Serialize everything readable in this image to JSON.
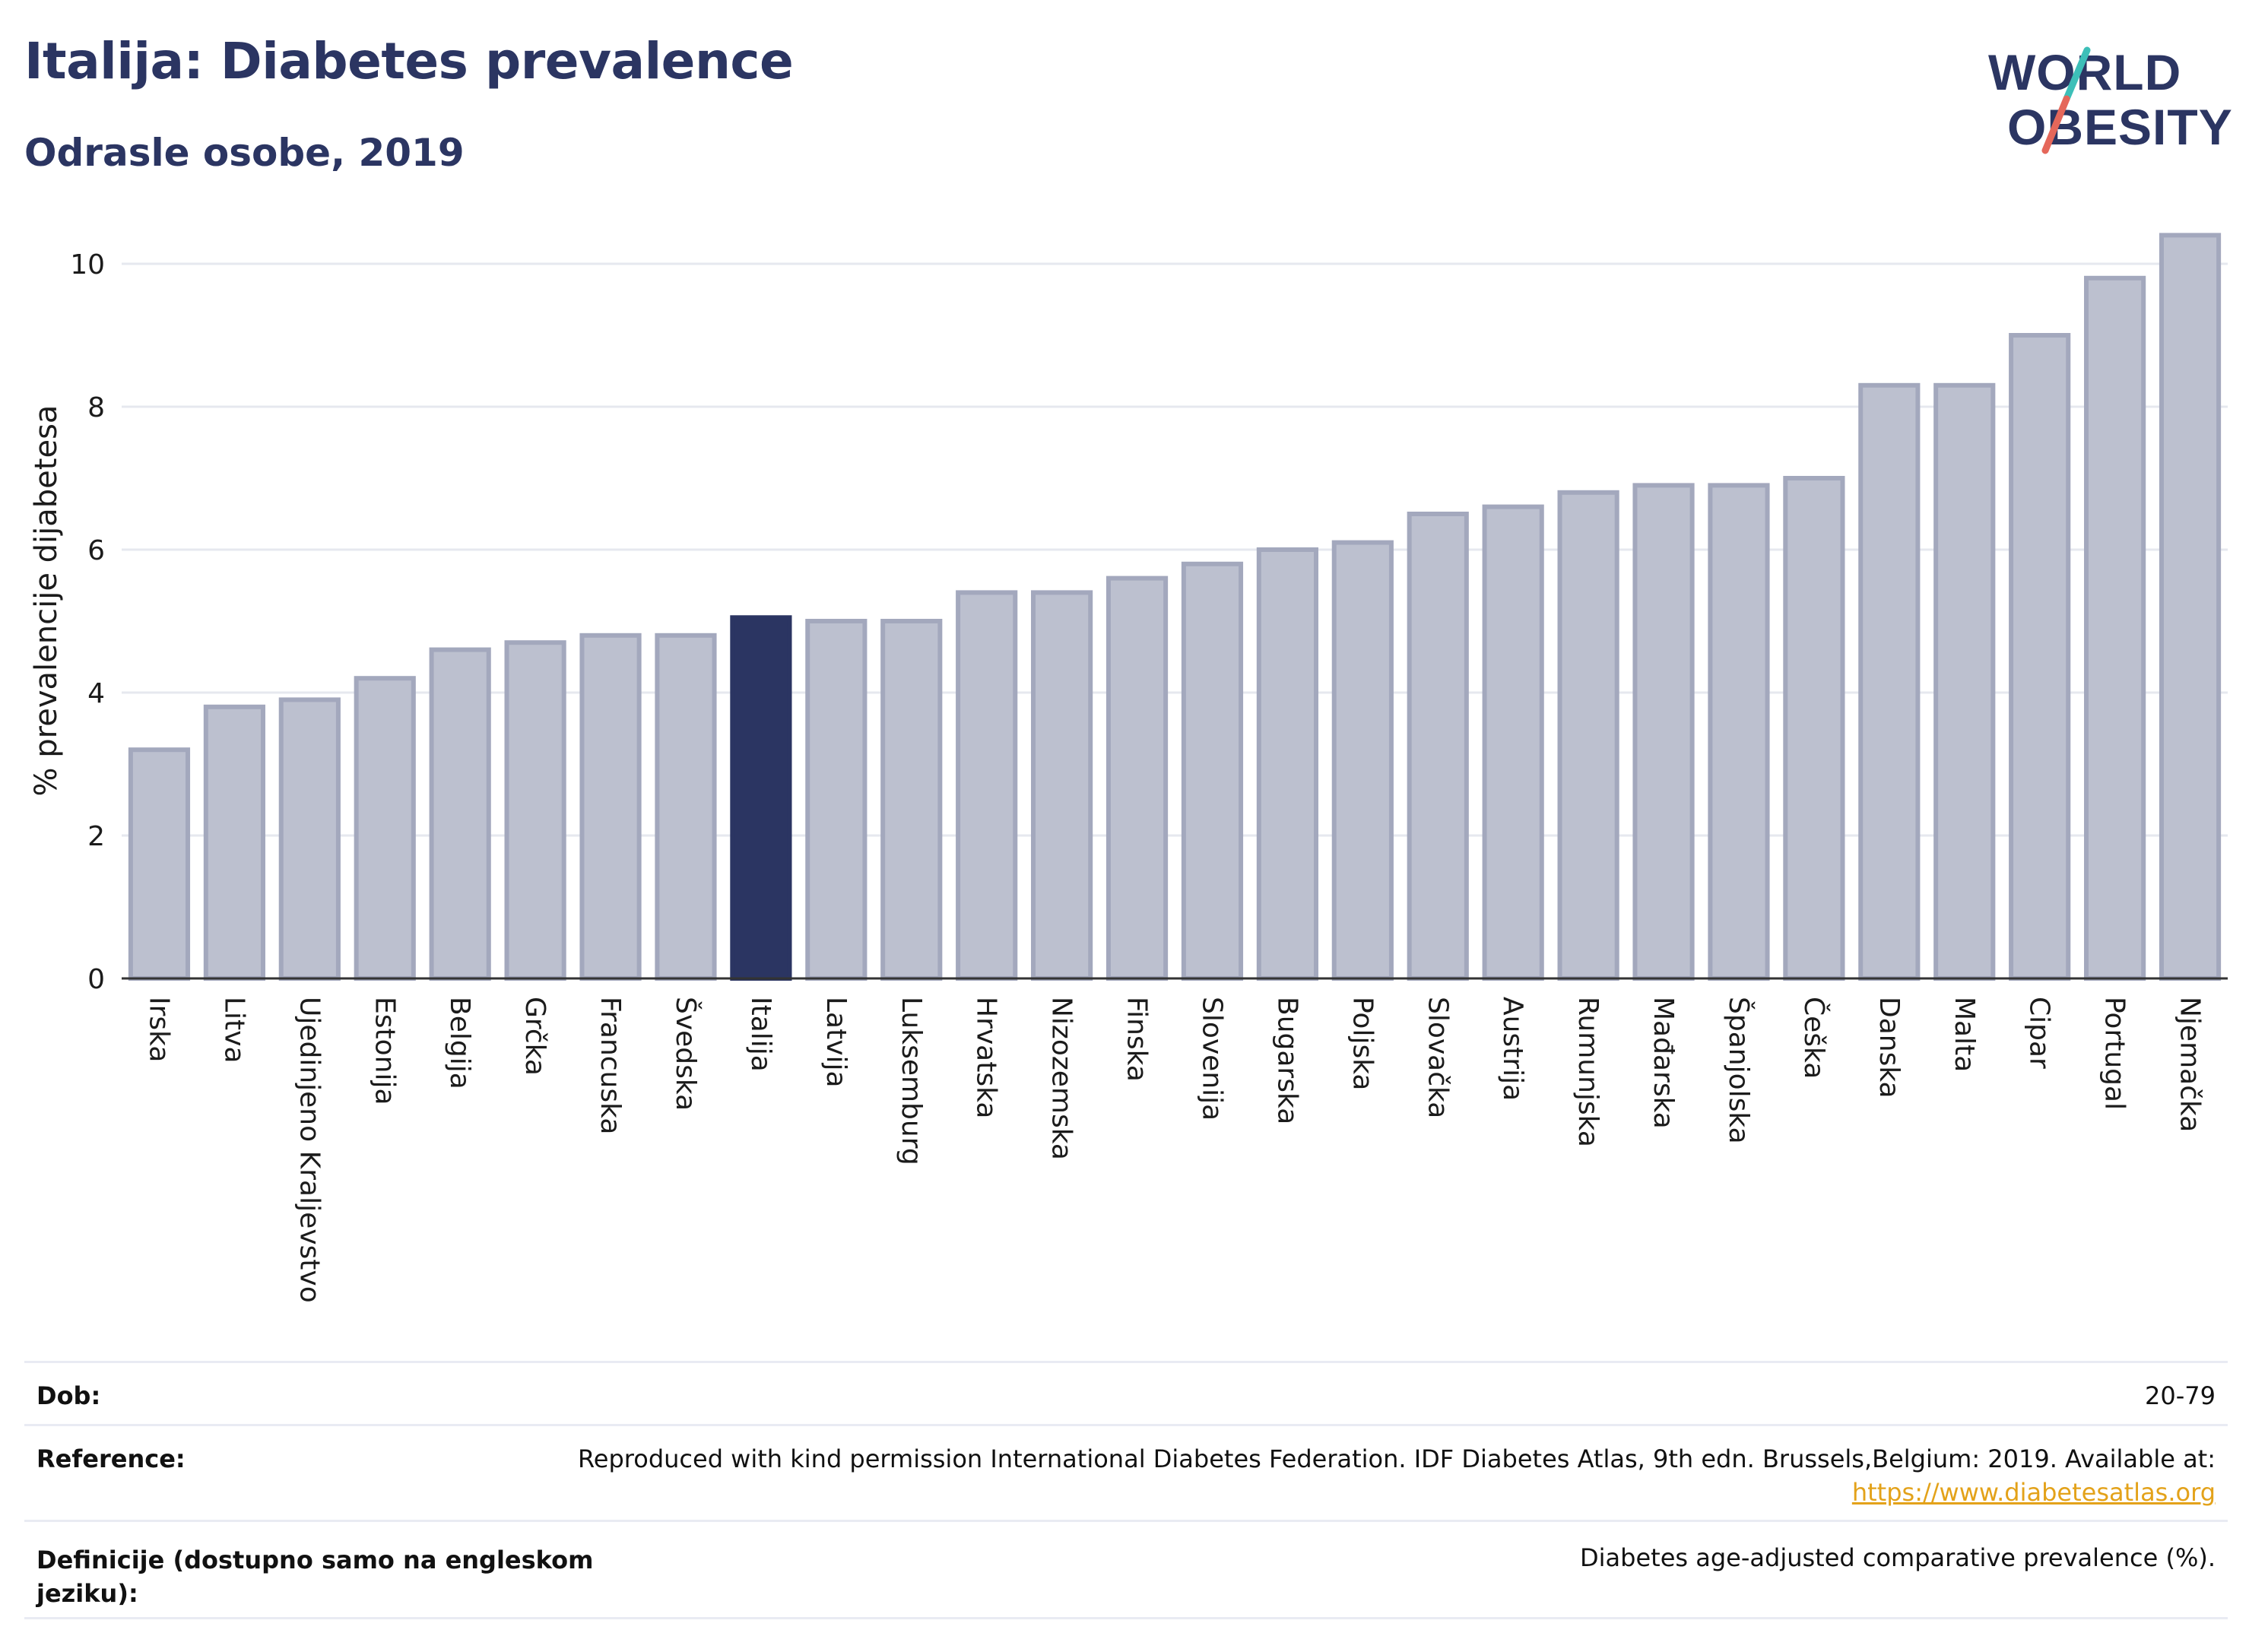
{
  "header": {
    "title": "Italija: Diabetes prevalence",
    "subtitle": "Odrasle osobe, 2019"
  },
  "logo": {
    "line1": "WORLD",
    "line2": "OBESITY",
    "slash_colors": [
      "#3dbfb8",
      "#e5675a"
    ]
  },
  "chart_data": {
    "type": "bar",
    "ylabel": "% prevalencije dijabetesa",
    "xlabel": "",
    "ylim": [
      0,
      10.5
    ],
    "yticks": [
      0,
      2,
      4,
      6,
      8,
      10
    ],
    "grid": true,
    "highlight_category": "Italija",
    "colors": {
      "bar": "#bcc0cf",
      "bar_stroke": "#a3a8bd",
      "highlight": "#2b3562",
      "grid": "#e6e8ef",
      "axis": "#333333"
    },
    "categories": [
      "Irska",
      "Litva",
      "Ujedinjeno Kraljevstvo",
      "Estonija",
      "Belgija",
      "Grčka",
      "Francuska",
      "Švedska",
      "Italija",
      "Latvija",
      "Luksemburg",
      "Hrvatska",
      "Nizozemska",
      "Finska",
      "Slovenija",
      "Bugarska",
      "Poljska",
      "Slovačka",
      "Austrija",
      "Rumunjska",
      "Mađarska",
      "Španjolska",
      "Češka",
      "Danska",
      "Malta",
      "Cipar",
      "Portugal",
      "Njemačka"
    ],
    "values": [
      3.2,
      3.8,
      3.9,
      4.2,
      4.6,
      4.7,
      4.8,
      4.8,
      5.05,
      5.0,
      5.0,
      5.4,
      5.4,
      5.6,
      5.8,
      6.0,
      6.1,
      6.5,
      6.6,
      6.8,
      6.9,
      6.9,
      7.0,
      8.3,
      8.3,
      9.0,
      9.8,
      10.4
    ]
  },
  "info": {
    "age_label": "Dob:",
    "age_value": "20-79",
    "reference_label": "Reference:",
    "reference_text": "Reproduced with kind permission International Diabetes Federation. IDF Diabetes Atlas, 9th edn. Brussels,Belgium: 2019. Available at:",
    "reference_link": "https://www.diabetesatlas.org",
    "definition_label_line1": "Definicije (dostupno samo na engleskom",
    "definition_label_line2": "jeziku):",
    "definition_value": "Diabetes age-adjusted comparative prevalence (%)."
  }
}
